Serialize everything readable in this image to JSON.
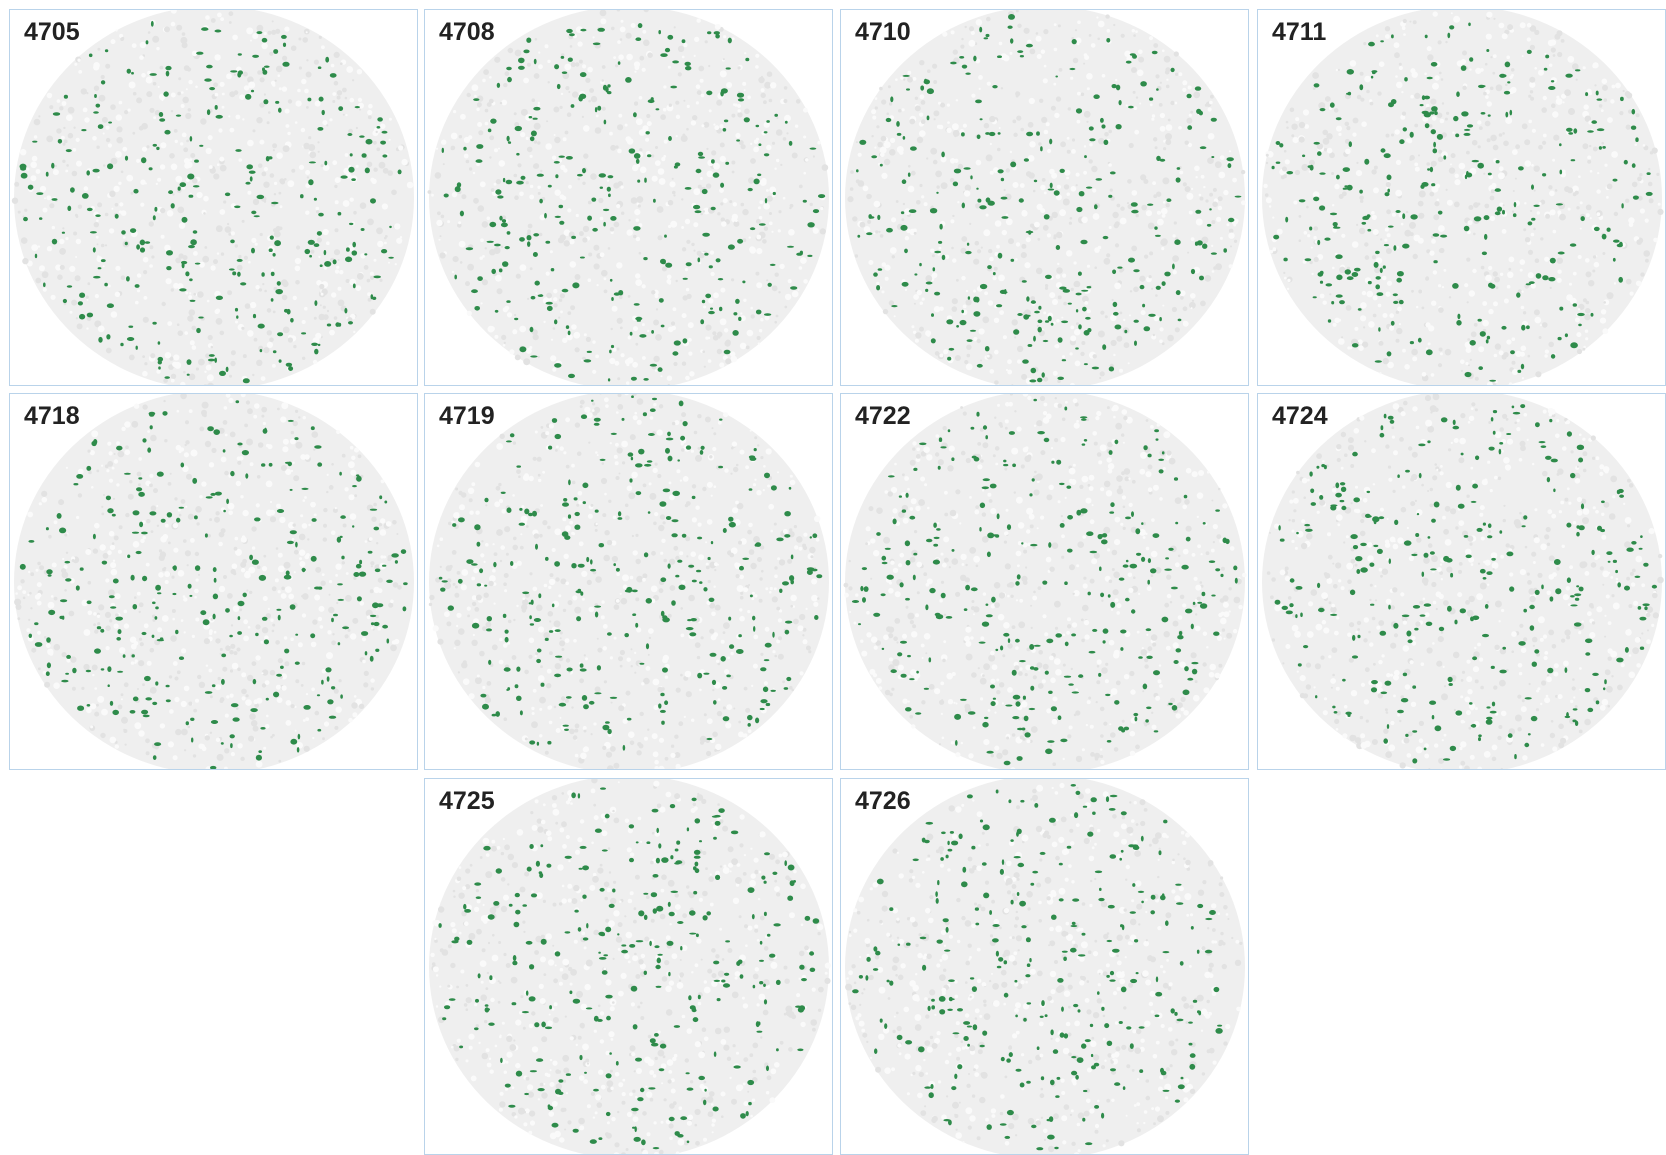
{
  "panels": [
    {
      "label": "4705"
    },
    {
      "label": "4708"
    },
    {
      "label": "4710"
    },
    {
      "label": "4711"
    },
    {
      "label": "4718"
    },
    {
      "label": "4719"
    },
    {
      "label": "4722"
    },
    {
      "label": "4724"
    },
    {
      "label": "4725"
    },
    {
      "label": "4726"
    }
  ]
}
